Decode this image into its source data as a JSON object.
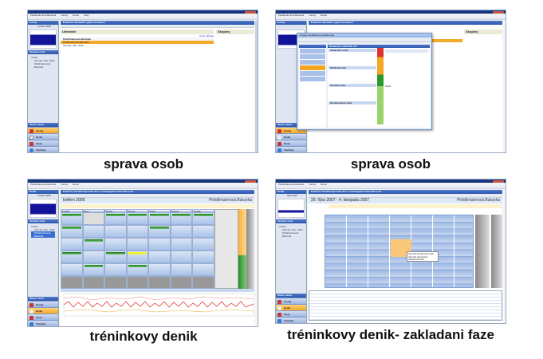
{
  "app": {
    "menu": [
      "Pleštilmannová Barunka",
      "Osoby",
      "Deník",
      "Testy",
      "Výpočty",
      "Dokument",
      "Nastavení",
      "Nápověda",
      "Konec"
    ]
  },
  "sidebar": {
    "osoby": "Osoby",
    "denik": "Deník",
    "calendar_month_1": "květen 2008",
    "calendar_month_2": "října 2007",
    "tree_header": "Seznam osob",
    "tree": [
      "Osoby",
      "Seznam Petr, 'Alfík'",
      "Pleštilmannová Barunka"
    ]
  },
  "main_menu": {
    "header": "Hlavní menu",
    "items": [
      "Osoby",
      "Deník",
      "Testy",
      "Tréninky"
    ]
  },
  "panel1": {
    "title": "Evidence uživatelů a jejich nastavení",
    "users_heading": "Uživatelé",
    "groups_heading": "Skupiny",
    "user_selected": "Pleštilmannová Barunka",
    "user_other": "Seznam Petr, 'Alfík'",
    "new_user": "Nový uživatel"
  },
  "panel2": {
    "dialog_title": "Osoba: Pleštilmannová Barunka",
    "dialog_header": "Nastavení srdečních zón",
    "zones": [
      "Anaerobní zóna",
      "Smíšená zóna",
      "Aerobní zóna",
      "Kompenzační zóna"
    ],
    "note": "Popis"
  },
  "panel3": {
    "title": "Evidence tréninkových fází dne a souvisejících záznamů osob",
    "period": "květen 2008",
    "person": "Pleštilmannová Barunka",
    "days": [
      "Pondělí",
      "Úterý",
      "Středa",
      "Čtvrtek",
      "Pátek",
      "Sobota",
      "Neděle"
    ]
  },
  "panel4": {
    "title": "Evidence tréninkových fází dne a souvisejících záznamů osob",
    "period": "29. října 2007 - 4. listopadu 2007",
    "person": "Pleštilmannová Barunka",
    "context_menu": [
      "Vytvořit tréninkovou fázi",
      "Vytvořit poznámku",
      "Zkopírovat fázi"
    ]
  },
  "captions": [
    "sprava osob",
    "sprava osob",
    "tréninkovy denik",
    "tréninkovy denik- zakladani faze"
  ]
}
